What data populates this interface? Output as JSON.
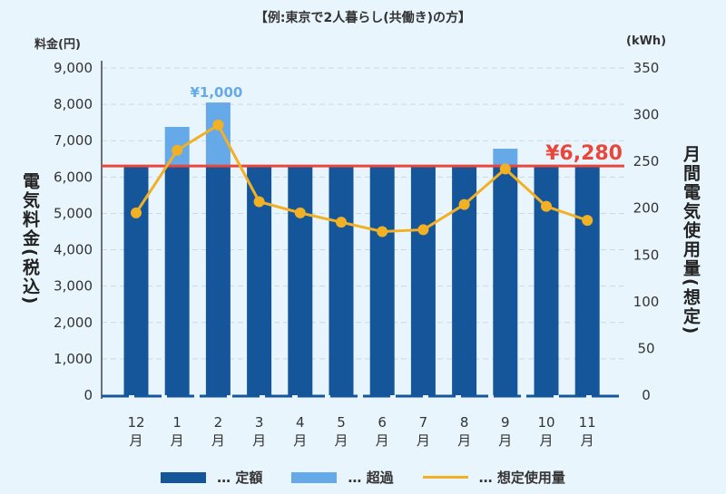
{
  "colors": {
    "fixed": "#15569b",
    "excess": "#66a9e8",
    "usage": "#f2b124",
    "threshold": "#e9473b",
    "grid": "#c9d9e6"
  },
  "chart_data": {
    "type": "bar",
    "title": "【例:東京で2人暮らし(共働き)の方】",
    "categories": [
      "12月",
      "1月",
      "2月",
      "3月",
      "4月",
      "5月",
      "6月",
      "7月",
      "8月",
      "9月",
      "10月",
      "11月"
    ],
    "ylabel": "電気料金(税込)",
    "ylabel_unit": "料金(円)",
    "y2label": "月間電気使用量(想定)",
    "y2label_unit": "(kWh)",
    "ylim": [
      0,
      9000
    ],
    "y2lim": [
      0,
      350
    ],
    "yticks": [
      "0",
      "1,000",
      "2,000",
      "3,000",
      "4,000",
      "5,000",
      "6,000",
      "7,000",
      "8,000",
      "9,000"
    ],
    "y2ticks": [
      "0",
      "50",
      "100",
      "150",
      "200",
      "250",
      "300",
      "350"
    ],
    "grid": true,
    "series": [
      {
        "name": "定額",
        "type": "bar",
        "values": [
          6280,
          6280,
          6280,
          6280,
          6280,
          6280,
          6280,
          6280,
          6280,
          6280,
          6280,
          6280
        ]
      },
      {
        "name": "超過",
        "type": "bar-stacked",
        "values": [
          0,
          1100,
          1770,
          0,
          0,
          0,
          0,
          0,
          0,
          500,
          0,
          0
        ]
      },
      {
        "name": "想定使用量",
        "type": "line",
        "axis": "right",
        "values": [
          195,
          262,
          289,
          207,
          195,
          185,
          175,
          177,
          204,
          242,
          202,
          187
        ]
      }
    ],
    "threshold": {
      "value": 6280,
      "label": "¥6,280"
    },
    "annotations": [
      {
        "category": "2月",
        "label": "¥1,000"
      }
    ],
    "legend": {
      "placement": "bottom",
      "items": [
        "… 定額",
        "… 超過",
        "… 想定使用量"
      ]
    }
  }
}
